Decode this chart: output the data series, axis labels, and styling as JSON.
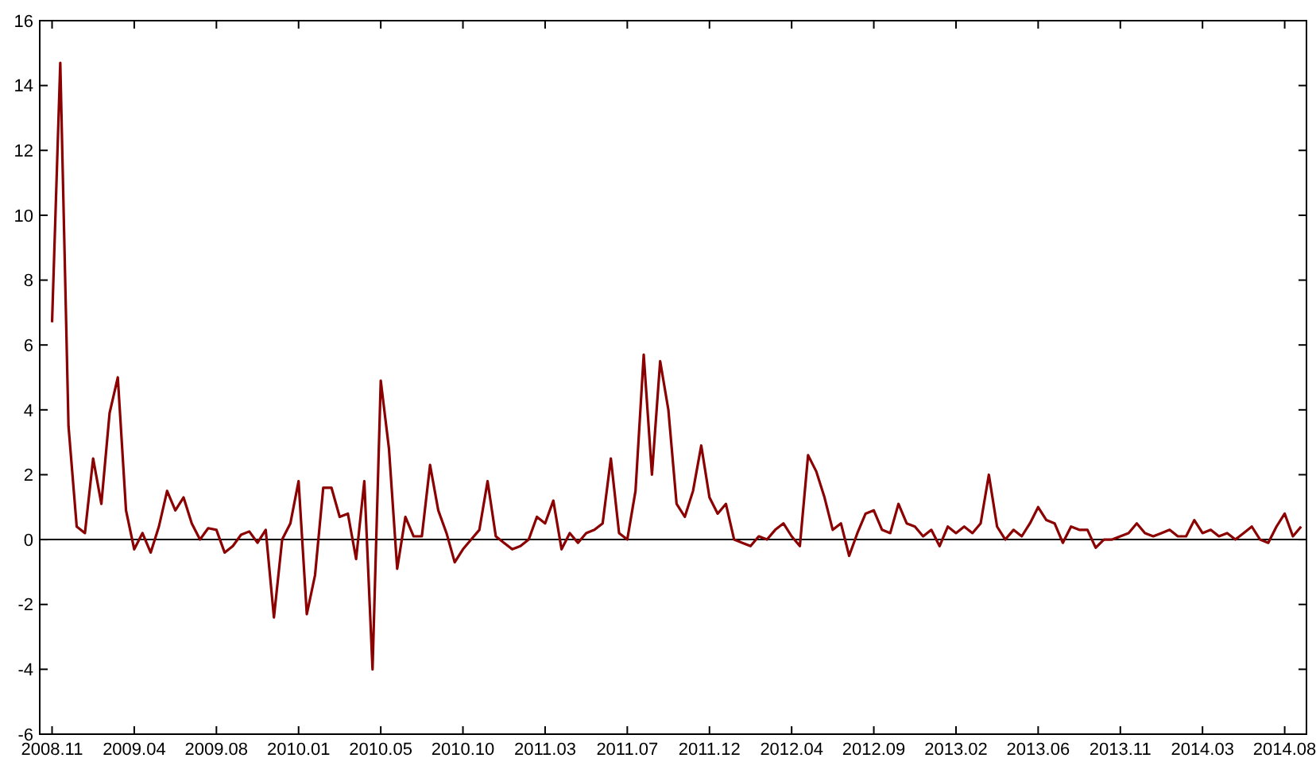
{
  "chart_data": {
    "type": "line",
    "categories": [
      "2008.11",
      null,
      null,
      null,
      null,
      null,
      null,
      null,
      null,
      null,
      "2009.04",
      null,
      null,
      null,
      null,
      null,
      null,
      null,
      null,
      null,
      "2009.08",
      null,
      null,
      null,
      null,
      null,
      null,
      null,
      null,
      null,
      "2010.01",
      null,
      null,
      null,
      null,
      null,
      null,
      null,
      null,
      null,
      "2010.05",
      null,
      null,
      null,
      null,
      null,
      null,
      null,
      null,
      null,
      "2010.10",
      null,
      null,
      null,
      null,
      null,
      null,
      null,
      null,
      null,
      "2011.03",
      null,
      null,
      null,
      null,
      null,
      null,
      null,
      null,
      null,
      "2011.07",
      null,
      null,
      null,
      null,
      null,
      null,
      null,
      null,
      null,
      "2011.12",
      null,
      null,
      null,
      null,
      null,
      null,
      null,
      null,
      null,
      "2012.04",
      null,
      null,
      null,
      null,
      null,
      null,
      null,
      null,
      null,
      "2012.09",
      null,
      null,
      null,
      null,
      null,
      null,
      null,
      null,
      null,
      "2013.02",
      null,
      null,
      null,
      null,
      null,
      null,
      null,
      null,
      null,
      "2013.06",
      null,
      null,
      null,
      null,
      null,
      null,
      null,
      null,
      null,
      "2013.11",
      null,
      null,
      null,
      null,
      null,
      null,
      null,
      null,
      null,
      "2014.03",
      null,
      null,
      null,
      null,
      null,
      null,
      null,
      null,
      null,
      "2014.08",
      null,
      null
    ],
    "series": [
      {
        "color": "#8b0000",
        "values": [
          6.7,
          14.7,
          3.5,
          0.4,
          0.2,
          2.5,
          1.1,
          3.9,
          5.0,
          0.9,
          -0.3,
          0.2,
          -0.4,
          0.4,
          1.5,
          0.9,
          1.3,
          0.5,
          0.0,
          0.35,
          0.3,
          -0.4,
          -0.2,
          0.15,
          0.25,
          -0.1,
          0.3,
          -2.4,
          0.0,
          0.5,
          1.8,
          -2.3,
          -1.1,
          1.6,
          1.6,
          0.7,
          0.8,
          -0.6,
          1.8,
          -4.0,
          4.9,
          2.8,
          -0.9,
          0.7,
          0.1,
          0.1,
          2.3,
          0.9,
          0.2,
          -0.7,
          -0.3,
          0.0,
          0.3,
          1.8,
          0.1,
          -0.1,
          -0.3,
          -0.2,
          0.0,
          0.7,
          0.5,
          1.2,
          -0.3,
          0.2,
          -0.1,
          0.2,
          0.3,
          0.5,
          2.5,
          0.2,
          0.0,
          1.5,
          5.7,
          2.0,
          5.5,
          4.0,
          1.1,
          0.7,
          1.5,
          2.9,
          1.3,
          0.8,
          1.1,
          0.0,
          -0.1,
          -0.2,
          0.1,
          0.0,
          0.3,
          0.5,
          0.1,
          -0.2,
          2.6,
          2.1,
          1.3,
          0.3,
          0.5,
          -0.5,
          0.2,
          0.8,
          0.9,
          0.3,
          0.2,
          1.1,
          0.5,
          0.4,
          0.1,
          0.3,
          -0.2,
          0.4,
          0.2,
          0.4,
          0.2,
          0.5,
          2.0,
          0.4,
          0.0,
          0.3,
          0.1,
          0.5,
          1.0,
          0.6,
          0.5,
          -0.1,
          0.4,
          0.3,
          0.3,
          -0.25,
          0.0,
          0.0,
          0.1,
          0.2,
          0.5,
          0.2,
          0.1,
          0.2,
          0.3,
          0.1,
          0.1,
          0.6,
          0.2,
          0.3,
          0.1,
          0.2,
          0.0,
          0.2,
          0.4,
          0.0,
          -0.1,
          0.4,
          0.8,
          0.1,
          0.4
        ]
      }
    ],
    "ylim": [
      -6,
      16
    ],
    "yticks": [
      -6,
      -4,
      -2,
      0,
      2,
      4,
      6,
      8,
      10,
      12,
      14,
      16
    ],
    "ref_lines": [
      {
        "axis": "y",
        "value": 0,
        "color": "#000000"
      }
    ],
    "grid": false,
    "marker": "none",
    "line_style": "solid"
  }
}
